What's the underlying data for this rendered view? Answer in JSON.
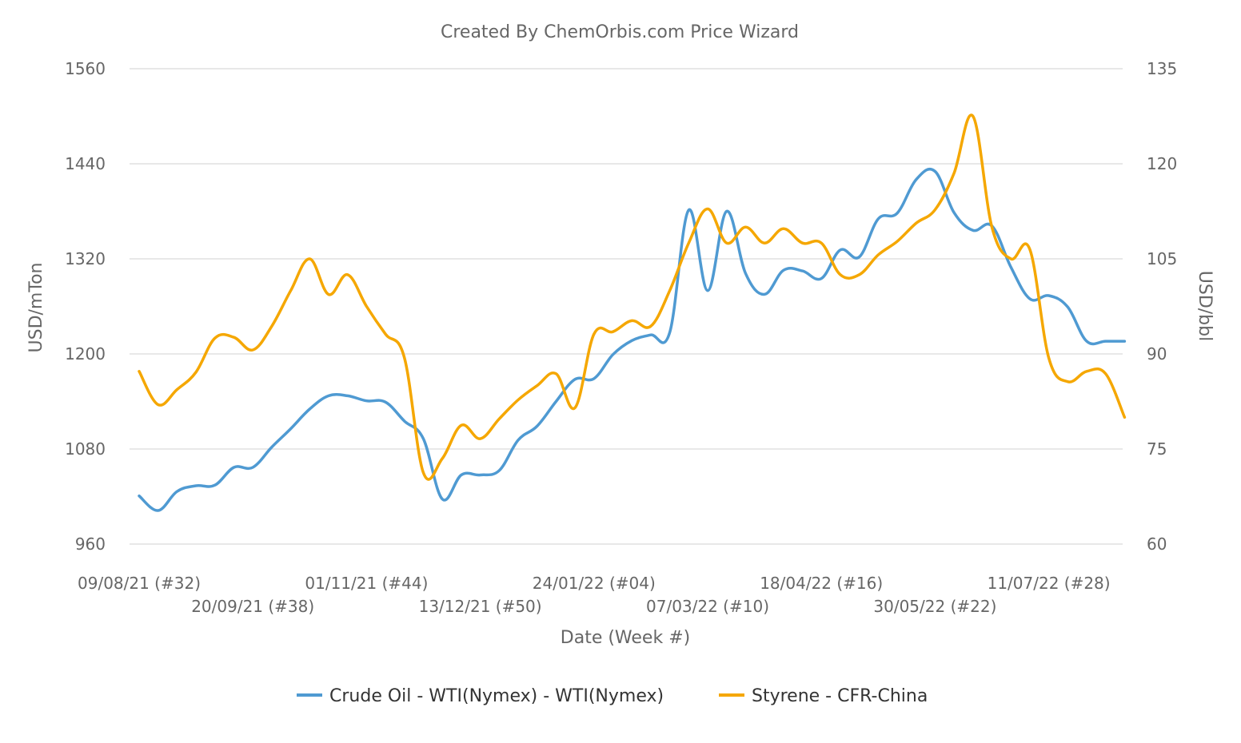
{
  "chart_data": {
    "type": "line",
    "title": "Created By ChemOrbis.com Price Wizard",
    "xlabel": "Date (Week #)",
    "ylabel_left": "USD/mTon",
    "ylabel_right": "USD/bbl",
    "ylim_left": [
      960,
      1560
    ],
    "ylim_right": [
      60,
      135
    ],
    "yticks_left": [
      "960",
      "1080",
      "1200",
      "1320",
      "1440",
      "1560"
    ],
    "yticks_right": [
      "60",
      "75",
      "90",
      "105",
      "120",
      "135"
    ],
    "x_tick_labels": [
      "09/08/21 (#32)",
      "20/09/21 (#38)",
      "01/11/21 (#44)",
      "13/12/21 (#50)",
      "24/01/22 (#04)",
      "07/03/22 (#10)",
      "18/04/22 (#16)",
      "30/05/22 (#22)",
      "11/07/22 (#28)"
    ],
    "x_tick_weeks": [
      0,
      6,
      12,
      18,
      24,
      30,
      36,
      42,
      48
    ],
    "grid": true,
    "legend_position": "bottom",
    "series": [
      {
        "name": "Crude Oil - WTI(Nymex) - WTI(Nymex)",
        "axis": "right",
        "color": "#4f9ad2",
        "x": [
          0,
          1,
          2,
          3,
          4,
          5,
          6,
          7,
          8,
          9,
          10,
          11,
          12,
          13,
          14,
          15,
          16,
          17,
          18,
          19,
          20,
          21,
          22,
          23,
          24,
          25,
          26,
          27,
          28,
          29,
          30,
          31,
          32,
          33,
          34,
          35,
          36,
          37,
          38,
          39,
          40,
          41,
          42,
          43,
          44,
          45,
          46,
          47,
          48,
          49,
          50,
          51,
          52
        ],
        "values": [
          67.6,
          65.3,
          68.3,
          69.2,
          69.3,
          72.1,
          72.1,
          75.3,
          78.2,
          81.3,
          83.4,
          83.4,
          82.6,
          82.4,
          79.4,
          76.6,
          67.1,
          70.9,
          70.9,
          71.6,
          76.4,
          78.6,
          82.5,
          86.0,
          86.1,
          89.9,
          92.1,
          93.0,
          93.4,
          112.7,
          100.0,
          112.5,
          102.7,
          99.4,
          103.2,
          103.1,
          101.9,
          106.4,
          105.3,
          111.3,
          112.2,
          117.5,
          118.8,
          112.3,
          109.5,
          110.2,
          103.7,
          98.7,
          99.2,
          97.4,
          92.0,
          92.0,
          92.0
        ]
      },
      {
        "name": "Styrene - CFR-China",
        "axis": "left",
        "color": "#f5a700",
        "x": [
          0,
          1,
          2,
          3,
          4,
          5,
          6,
          7,
          8,
          9,
          10,
          11,
          12,
          13,
          14,
          15,
          16,
          17,
          18,
          19,
          20,
          21,
          22,
          23,
          24,
          25,
          26,
          27,
          28,
          29,
          30,
          31,
          32,
          33,
          34,
          35,
          36,
          37,
          38,
          39,
          40,
          41,
          42,
          43,
          44,
          45,
          46,
          47,
          48,
          49,
          50,
          51,
          52
        ],
        "values": [
          1178,
          1136,
          1155,
          1177,
          1220,
          1221,
          1205,
          1235,
          1280,
          1320,
          1275,
          1300,
          1260,
          1225,
          1195,
          1050,
          1068,
          1110,
          1093,
          1118,
          1142,
          1160,
          1175,
          1132,
          1225,
          1228,
          1242,
          1235,
          1280,
          1340,
          1383,
          1340,
          1360,
          1340,
          1358,
          1340,
          1340,
          1300,
          1300,
          1325,
          1342,
          1365,
          1382,
          1428,
          1500,
          1360,
          1320,
          1332,
          1195,
          1165,
          1178,
          1175,
          1120
        ]
      }
    ]
  }
}
